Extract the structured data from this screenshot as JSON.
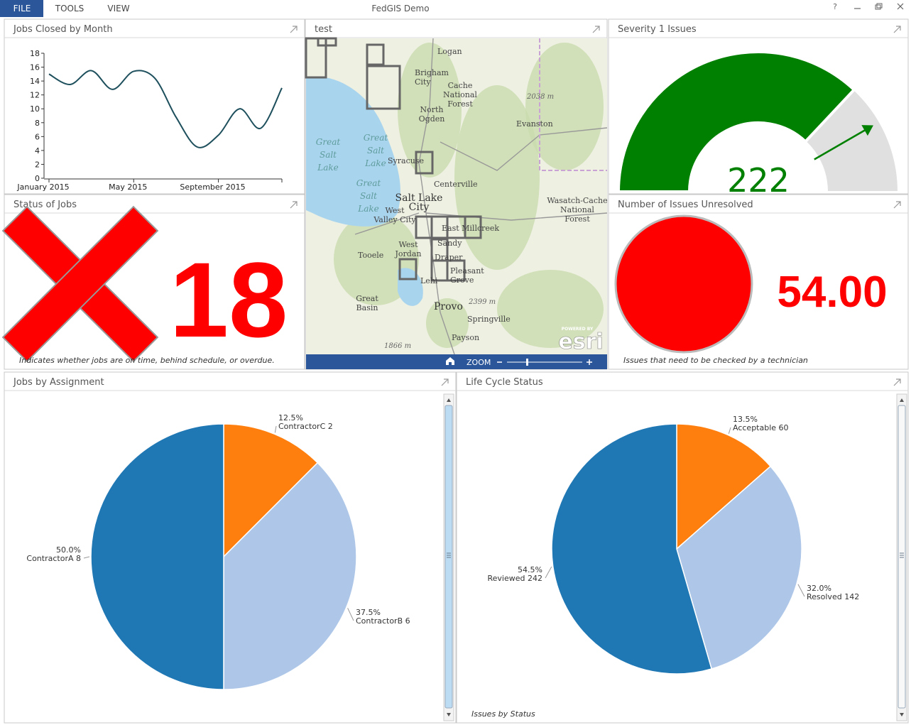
{
  "menu": {
    "items": [
      "FILE",
      "TOOLS",
      "VIEW"
    ]
  },
  "window": {
    "title": "FedGIS Demo",
    "help": "?"
  },
  "panels": {
    "jobs_closed": {
      "title": "Jobs Closed by Month",
      "chart": {
        "type": "line",
        "categories": [
          "January 2015",
          null,
          null,
          null,
          "May 2015",
          null,
          null,
          null,
          "September 2015",
          null,
          null,
          null
        ],
        "values": [
          15,
          13.5,
          15.5,
          12.8,
          15.4,
          14.4,
          8.8,
          4.5,
          6.2,
          10,
          7.2,
          13
        ],
        "color": "#1d4f5c",
        "ylim": [
          0,
          18
        ],
        "yticks": [
          0,
          2,
          4,
          6,
          8,
          10,
          12,
          14,
          16,
          18
        ]
      }
    },
    "status": {
      "title": "Status of Jobs",
      "value": 18,
      "caption": "Indicates whether jobs are on time, behind schedule, or overdue.",
      "color": "#ff0000"
    },
    "map": {
      "title": "test",
      "labels": [
        [
          "Logan"
        ],
        [
          "Brigham",
          "City"
        ],
        [
          "Cache",
          "National",
          "Forest"
        ],
        [
          "North",
          "Ogden"
        ],
        [
          "2038 m"
        ],
        [
          "Evanston"
        ],
        [
          "Great",
          "Salt",
          "Lake"
        ],
        [
          "Great",
          "Salt",
          "Lake"
        ],
        [
          "Syracuse"
        ],
        [
          "Centerville"
        ],
        [
          "Great",
          "Salt",
          "Lake"
        ],
        [
          "Salt Lake",
          "City"
        ],
        [
          "West",
          "Valley City"
        ],
        [
          "East Millcreek"
        ],
        [
          "Sandy"
        ],
        [
          "Draper"
        ],
        [
          "West",
          "Jordan"
        ],
        [
          "Tooele"
        ],
        [
          "Pleasant",
          "Grove"
        ],
        [
          "Lehi"
        ],
        [
          "Wasatch-Cache",
          "National",
          "Forest"
        ],
        [
          "Provo"
        ],
        [
          "2399 m"
        ],
        [
          "Springville"
        ],
        [
          "Great",
          "Basin"
        ],
        [
          "Payson"
        ],
        [
          "1866 m"
        ]
      ],
      "zoom": "ZOOM",
      "attribution": {
        "powered": "POWERED BY",
        "brand": "esri"
      }
    },
    "severity": {
      "title": "Severity 1 Issues",
      "chart": {
        "type": "gauge",
        "value": 222,
        "range": [
          0,
          300
        ],
        "target": 250,
        "color": "#008000",
        "track_color": "#e0e0e0"
      }
    },
    "unresolved": {
      "title": "Number of Issues Unresolved",
      "value": "54.00",
      "caption": "Issues that need to be checked by a technician",
      "color": "#ff0000"
    },
    "assignment": {
      "title": "Jobs by Assignment",
      "chart": {
        "type": "pie",
        "categories": [
          "ContractorC",
          "ContractorB",
          "ContractorA"
        ],
        "values": [
          2,
          6,
          8
        ],
        "percent_labels": [
          "12.5%",
          "37.5%",
          "50.0%"
        ],
        "colors": [
          "#ff7f0e",
          "#aec7e8",
          "#1f77b4"
        ]
      }
    },
    "lifecycle": {
      "title": "Life Cycle Status",
      "chart": {
        "type": "pie",
        "categories": [
          "Acceptable",
          "Resolved",
          "Reviewed"
        ],
        "values": [
          60,
          142,
          242
        ],
        "percent_labels": [
          "13.5%",
          "32.0%",
          "54.5%"
        ],
        "colors": [
          "#ff7f0e",
          "#aec7e8",
          "#1f77b4"
        ]
      },
      "caption": "Issues by Status"
    }
  }
}
